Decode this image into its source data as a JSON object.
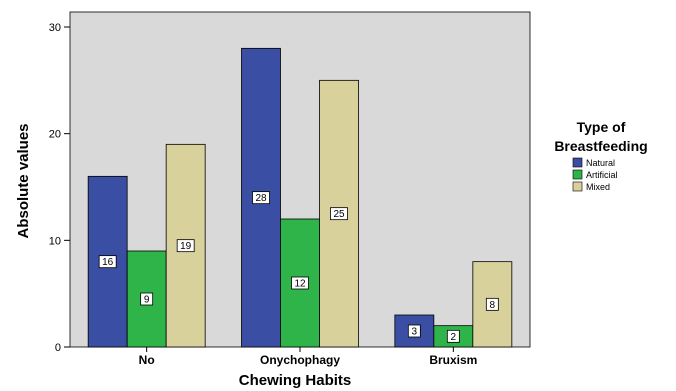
{
  "chart_data": {
    "type": "bar",
    "categories": [
      "No",
      "Onychophagy",
      "Bruxism"
    ],
    "series": [
      {
        "name": "Natural",
        "values": [
          16,
          28,
          3
        ],
        "color": "#3a4fa3"
      },
      {
        "name": "Artificial",
        "values": [
          9,
          12,
          2
        ],
        "color": "#2fb449"
      },
      {
        "name": "Mixed",
        "values": [
          19,
          25,
          8
        ],
        "color": "#d8d19c"
      }
    ],
    "xlabel": "Chewing Habits",
    "ylabel": "Absolute values",
    "ylim": [
      0,
      30
    ],
    "yticks": [
      0,
      10,
      20,
      30
    ],
    "legend_title_line1": "Type of",
    "legend_title_line2": "Breastfeeding",
    "legend_position": "right",
    "plot_background": "#d9d9d9",
    "grid": false
  }
}
